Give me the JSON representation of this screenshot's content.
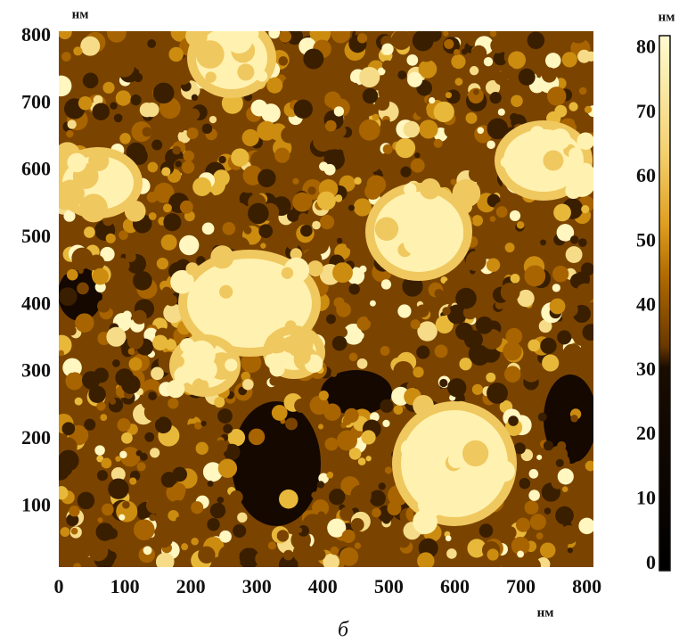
{
  "chart_data": {
    "type": "image",
    "x_unit": "нм",
    "y_unit": "нм",
    "colorbar_unit": "нм",
    "caption": "б",
    "xlim": [
      0,
      810
    ],
    "xticks": [
      0,
      100,
      200,
      300,
      400,
      500,
      600,
      700,
      800
    ],
    "ylim": [
      10,
      808
    ],
    "yticks": [
      100,
      200,
      300,
      400,
      500,
      600,
      700,
      800
    ],
    "clim": [
      -1,
      82
    ],
    "cticks": [
      0,
      10,
      20,
      30,
      40,
      50,
      60,
      70,
      80
    ]
  }
}
